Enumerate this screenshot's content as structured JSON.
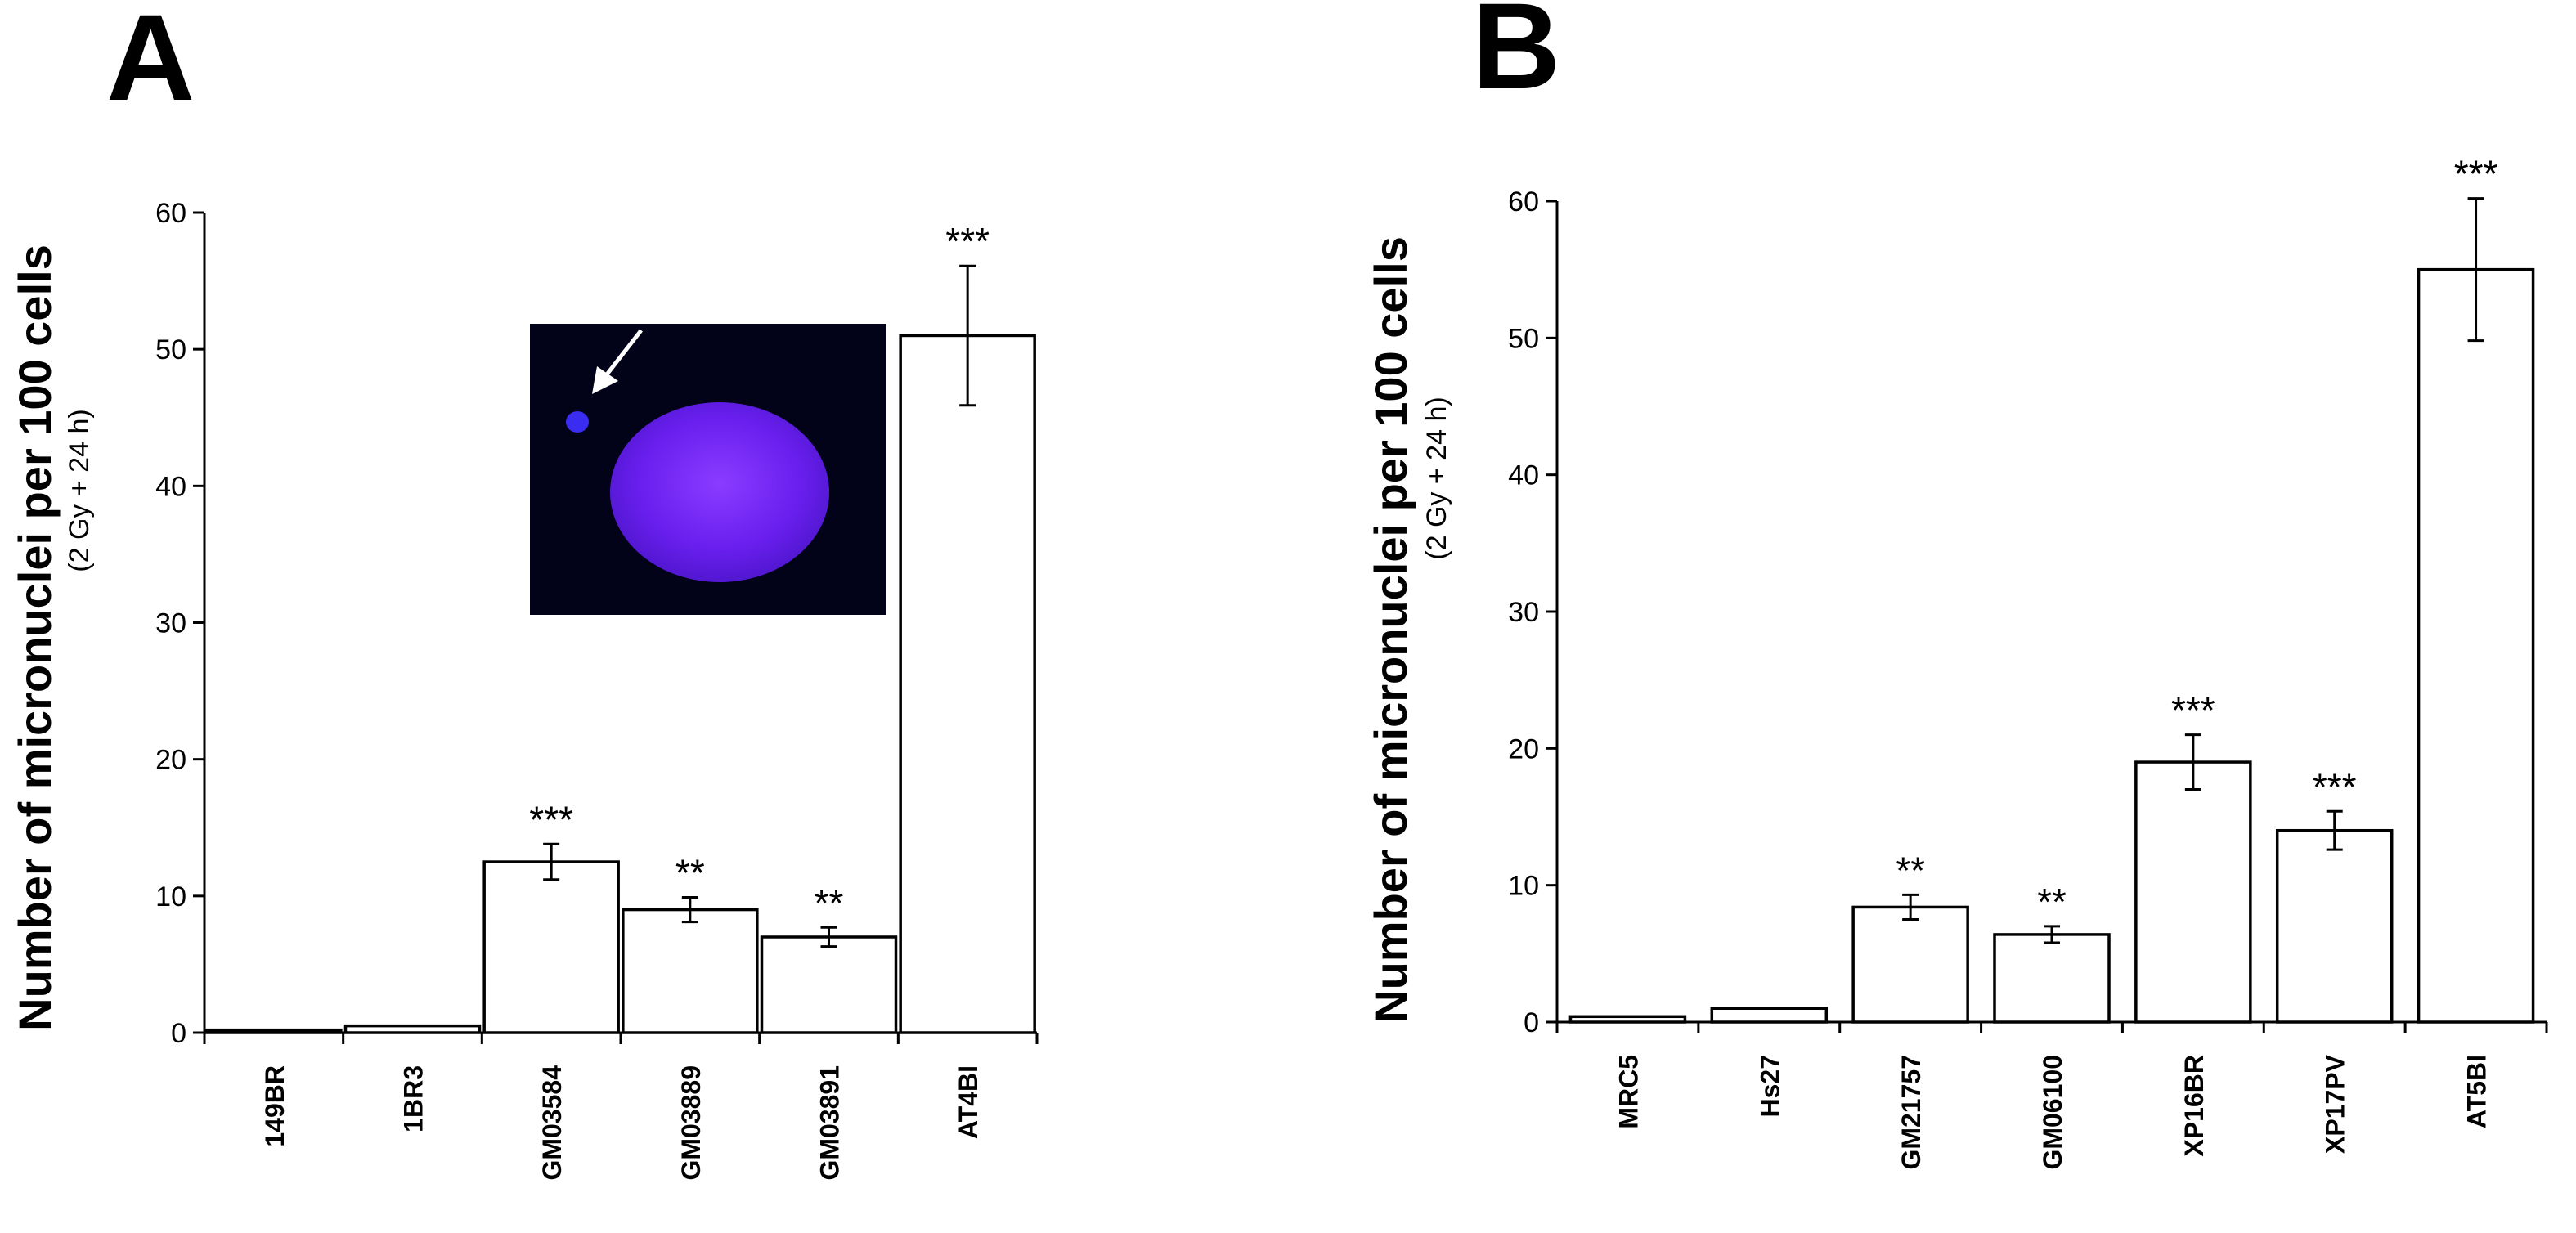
{
  "panels": {
    "a": {
      "letter": "A"
    },
    "b": {
      "letter": "B"
    }
  },
  "chart_data": [
    {
      "type": "bar",
      "panel": "A",
      "ylabel": "Number of micronuclei per 100 cells",
      "ylabel_sub": "(2 Gy + 24 h)",
      "ylim": [
        0,
        60
      ],
      "yticks": [
        0,
        10,
        20,
        30,
        40,
        50,
        60
      ],
      "categories": [
        "149BR",
        "1BR3",
        "GM03584",
        "GM03889",
        "GM03891",
        "AT4BI"
      ],
      "values": [
        0.2,
        0.5,
        12.5,
        9,
        7,
        51
      ],
      "errors": [
        0.1,
        0.1,
        1.3,
        0.9,
        0.7,
        5.1
      ],
      "significance": [
        "",
        "",
        "***",
        "**",
        "**",
        "***"
      ],
      "grid": false,
      "inset": "nucleus micrograph with arrow pointing to micronucleus"
    },
    {
      "type": "bar",
      "panel": "B",
      "ylabel": "Number of micronuclei per 100 cells",
      "ylabel_sub": "(2 Gy + 24 h)",
      "ylim": [
        0,
        60
      ],
      "yticks": [
        0,
        10,
        20,
        30,
        40,
        50,
        60
      ],
      "categories": [
        "MRC5",
        "Hs27",
        "GM21757",
        "GM06100",
        "XP16BR",
        "XP17PV",
        "AT5BI"
      ],
      "values": [
        0.4,
        1,
        8.4,
        6.4,
        19,
        14,
        55
      ],
      "errors": [
        0.1,
        0.2,
        0.9,
        0.6,
        2,
        1.4,
        5.2
      ],
      "significance": [
        "",
        "",
        "**",
        "**",
        "***",
        "***",
        "***"
      ],
      "grid": false
    }
  ]
}
